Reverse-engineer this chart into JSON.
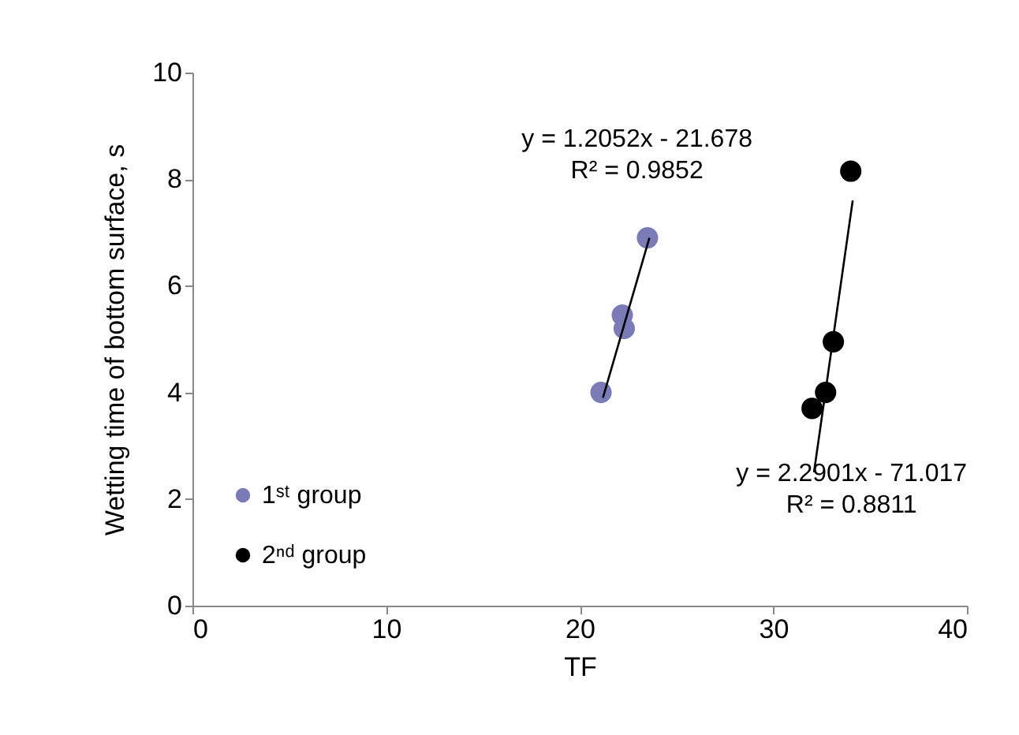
{
  "chart_data": {
    "type": "scatter",
    "xlabel": "TF",
    "ylabel": "Wetting time of bottom surface, s",
    "xlim": [
      0,
      40
    ],
    "xticks": [
      0,
      10,
      20,
      30,
      40
    ],
    "ylim": [
      0,
      10
    ],
    "yticks": [
      0,
      2,
      4,
      6,
      8,
      10
    ],
    "grid": false,
    "legend": "bottom left",
    "series": [
      {
        "name": "1ˢᵗ group",
        "color": "#7b7bb8",
        "marker": "circle",
        "x": [
          21.1,
          22.2,
          22.3,
          23.5
        ],
        "values": [
          4.0,
          5.45,
          5.2,
          6.9
        ]
      },
      {
        "name": "2ⁿᵈ group",
        "color": "#000000",
        "marker": "circle",
        "x": [
          32.0,
          32.7,
          33.1,
          34.0
        ],
        "values": [
          3.7,
          4.0,
          4.95,
          8.15
        ]
      },
      {
        "type": "line",
        "color": "#000000",
        "x": [
          21.2,
          23.6
        ],
        "values": [
          3.9,
          6.9
        ]
      },
      {
        "type": "line",
        "color": "#000000",
        "x": [
          32.1,
          34.1
        ],
        "values": [
          2.5,
          7.6
        ]
      }
    ],
    "annotations": [
      "y = 1.2052x - 21.678\nR² = 0.9852",
      "y = 2.2901x - 71.017\nR² = 0.8811"
    ]
  }
}
